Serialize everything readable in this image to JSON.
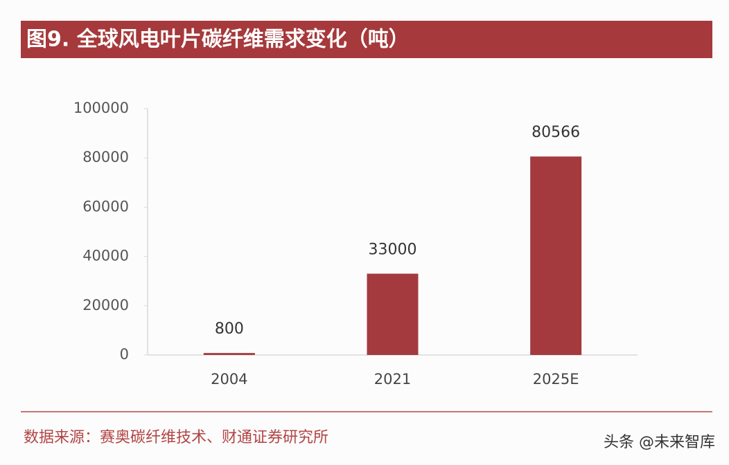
{
  "chart_data": {
    "type": "bar",
    "title": "图9. 全球风电叶片碳纤维需求变化（吨）",
    "categories": [
      "2004",
      "2021",
      "2025E"
    ],
    "values": [
      800,
      33000,
      80566
    ],
    "color": "#a43a3e",
    "ylim": [
      0,
      100000
    ],
    "yticks": [
      0,
      20000,
      40000,
      60000,
      80000,
      100000
    ],
    "grid": false,
    "source": "数据来源：赛奥碳纤维技术、财通证券研究所",
    "watermark": "头条 @未来智库"
  }
}
